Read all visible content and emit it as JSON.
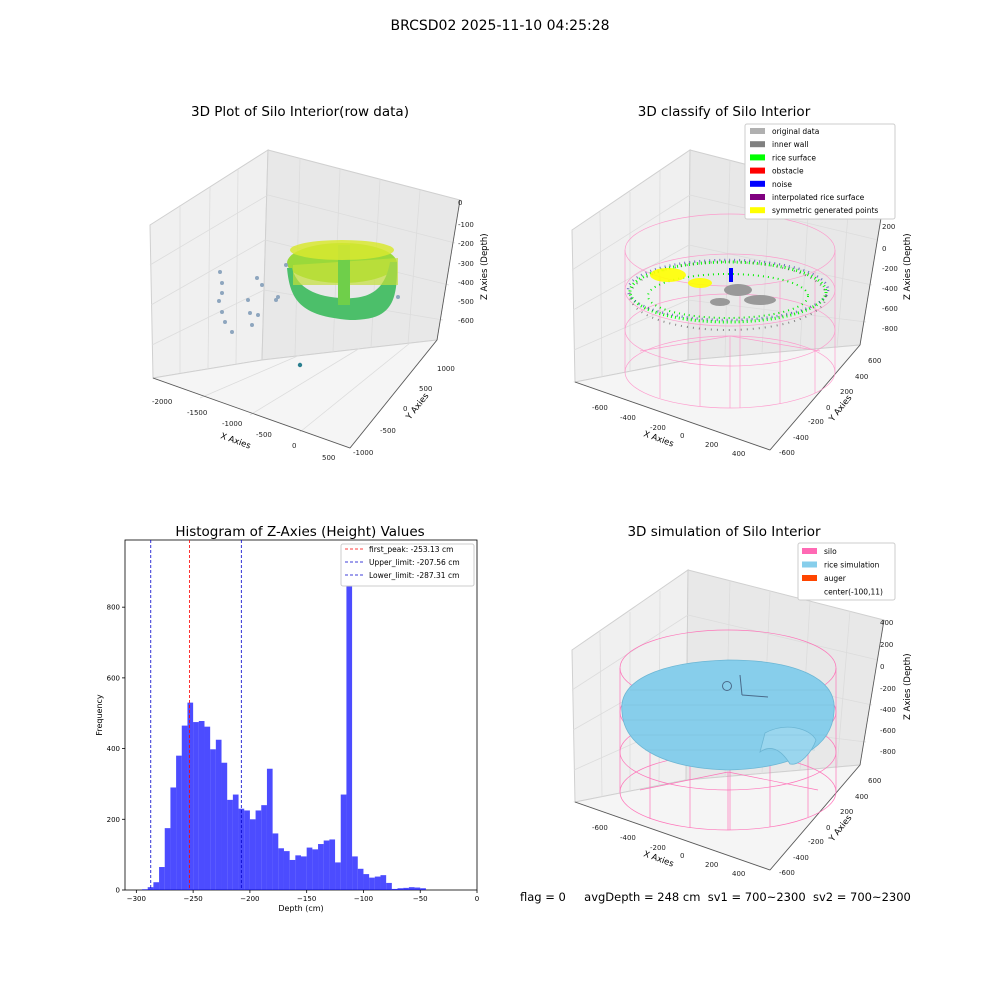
{
  "suptitle": "BRCSD02 2025-11-10 04:25:28",
  "panels": {
    "raw": {
      "title": "3D Plot of Silo Interior(row data)",
      "xlabel": "X Axies",
      "ylabel": "Y Axies",
      "zlabel": "Z Axies (Depth)",
      "xticks": [
        "-2000",
        "-1500",
        "-1000",
        "-500",
        "0",
        "500"
      ],
      "yticks": [
        "-1000",
        "-500",
        "0",
        "500",
        "1000"
      ],
      "zticks": [
        "0",
        "-100",
        "-200",
        "-300",
        "-400",
        "-500",
        "-600"
      ]
    },
    "classify": {
      "title": "3D classify of Silo Interior",
      "xlabel": "X Axies",
      "ylabel": "Y Axies",
      "zlabel": "Z Axies (Depth)",
      "xticks": [
        "-600",
        "-400",
        "-200",
        "0",
        "200",
        "400"
      ],
      "yticks": [
        "-600",
        "-400",
        "-200",
        "0",
        "200",
        "400",
        "600"
      ],
      "zticks": [
        "200",
        "0",
        "-200",
        "-400",
        "-600",
        "-800"
      ],
      "legend": [
        {
          "label": "original data",
          "color": "#b0b0b0"
        },
        {
          "label": "inner wall",
          "color": "#808080"
        },
        {
          "label": "rice surface",
          "color": "#00ff00"
        },
        {
          "label": "obstacle",
          "color": "#ff0000"
        },
        {
          "label": "noise",
          "color": "#0000ff"
        },
        {
          "label": "interpolated rice surface",
          "color": "#800080"
        },
        {
          "label": "symmetric generated points",
          "color": "#ffff00"
        }
      ]
    },
    "simulation": {
      "title": "3D simulation of Silo Interior",
      "xlabel": "X Axies",
      "ylabel": "Y Axies",
      "zlabel": "Z Axies (Depth)",
      "xticks": [
        "-600",
        "-400",
        "-200",
        "0",
        "200",
        "400"
      ],
      "yticks": [
        "-600",
        "-400",
        "-200",
        "0",
        "200",
        "400",
        "600"
      ],
      "zticks": [
        "400",
        "200",
        "0",
        "-200",
        "-400",
        "-600",
        "-800"
      ],
      "legend": [
        {
          "label": "silo",
          "color": "#ff69b4"
        },
        {
          "label": "rice simulation",
          "color": "#87ceeb"
        },
        {
          "label": "auger",
          "color": "#ff4500"
        },
        {
          "label": "center(-100,11)",
          "color": "none"
        }
      ]
    }
  },
  "chart_data": {
    "type": "bar",
    "title": "Histogram of Z-Axies (Height) Values",
    "xlabel": "Depth (cm)",
    "ylabel": "Frequency",
    "xlim": [
      -310,
      0
    ],
    "ylim": [
      0,
      990
    ],
    "xticks": [
      -300,
      -250,
      -200,
      -150,
      -100,
      -50,
      0
    ],
    "yticks": [
      0,
      200,
      400,
      600,
      800
    ],
    "bar_color": "#0000ff",
    "bin_width": 5,
    "bins": [
      {
        "x": -295,
        "v": 2
      },
      {
        "x": -290,
        "v": 8
      },
      {
        "x": -285,
        "v": 22
      },
      {
        "x": -280,
        "v": 65
      },
      {
        "x": -275,
        "v": 175
      },
      {
        "x": -270,
        "v": 290
      },
      {
        "x": -265,
        "v": 380
      },
      {
        "x": -260,
        "v": 465
      },
      {
        "x": -255,
        "v": 530
      },
      {
        "x": -250,
        "v": 475
      },
      {
        "x": -245,
        "v": 478
      },
      {
        "x": -240,
        "v": 462
      },
      {
        "x": -235,
        "v": 398
      },
      {
        "x": -230,
        "v": 425
      },
      {
        "x": -225,
        "v": 360
      },
      {
        "x": -220,
        "v": 255
      },
      {
        "x": -215,
        "v": 270
      },
      {
        "x": -210,
        "v": 230
      },
      {
        "x": -205,
        "v": 225
      },
      {
        "x": -200,
        "v": 200
      },
      {
        "x": -195,
        "v": 225
      },
      {
        "x": -190,
        "v": 240
      },
      {
        "x": -185,
        "v": 343
      },
      {
        "x": -180,
        "v": 160
      },
      {
        "x": -175,
        "v": 118
      },
      {
        "x": -170,
        "v": 110
      },
      {
        "x": -165,
        "v": 85
      },
      {
        "x": -160,
        "v": 98
      },
      {
        "x": -155,
        "v": 95
      },
      {
        "x": -150,
        "v": 120
      },
      {
        "x": -145,
        "v": 115
      },
      {
        "x": -140,
        "v": 130
      },
      {
        "x": -135,
        "v": 140
      },
      {
        "x": -130,
        "v": 143
      },
      {
        "x": -125,
        "v": 78
      },
      {
        "x": -120,
        "v": 270
      },
      {
        "x": -115,
        "v": 940
      },
      {
        "x": -110,
        "v": 95
      },
      {
        "x": -105,
        "v": 60
      },
      {
        "x": -100,
        "v": 45
      },
      {
        "x": -95,
        "v": 35
      },
      {
        "x": -90,
        "v": 38
      },
      {
        "x": -85,
        "v": 42
      },
      {
        "x": -80,
        "v": 20
      },
      {
        "x": -75,
        "v": 3
      },
      {
        "x": -70,
        "v": 5
      },
      {
        "x": -65,
        "v": 6
      },
      {
        "x": -60,
        "v": 8
      },
      {
        "x": -55,
        "v": 7
      },
      {
        "x": -50,
        "v": 5
      }
    ],
    "lines": [
      {
        "label": "first_peak: -253.13 cm",
        "x": -253.13,
        "color": "#ff0000"
      },
      {
        "label": "Upper_limit: -207.56 cm",
        "x": -207.56,
        "color": "#0000cc"
      },
      {
        "label": "Lower_limit: -287.31 cm",
        "x": -287.31,
        "color": "#0000cc"
      }
    ],
    "legend_position": "top-right"
  },
  "status": {
    "flag": "flag = 0",
    "avg_depth": "avgDepth = 248 cm",
    "sv1": "sv1 = 700~2300",
    "sv2": "sv2 = 700~2300"
  }
}
